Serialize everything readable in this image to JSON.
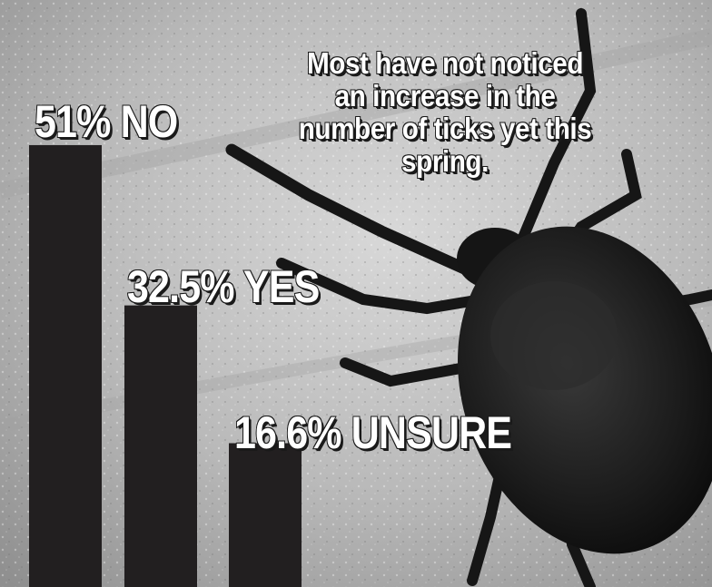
{
  "chart_data": {
    "type": "bar",
    "title": "Most have not noticed an increase in the number of ticks yet this spring.",
    "categories": [
      "NO",
      "YES",
      "UNSURE"
    ],
    "values": [
      51,
      32.5,
      16.6
    ],
    "labels": [
      "51% NO",
      "32.5% YES",
      "16.6% UNSURE"
    ],
    "unit": "%",
    "ylim": [
      0,
      60
    ],
    "grid": false,
    "legend": "none",
    "bar_color": "#221f20"
  },
  "background": {
    "subject": "tick-on-skin-photo",
    "tone": "grayscale"
  }
}
